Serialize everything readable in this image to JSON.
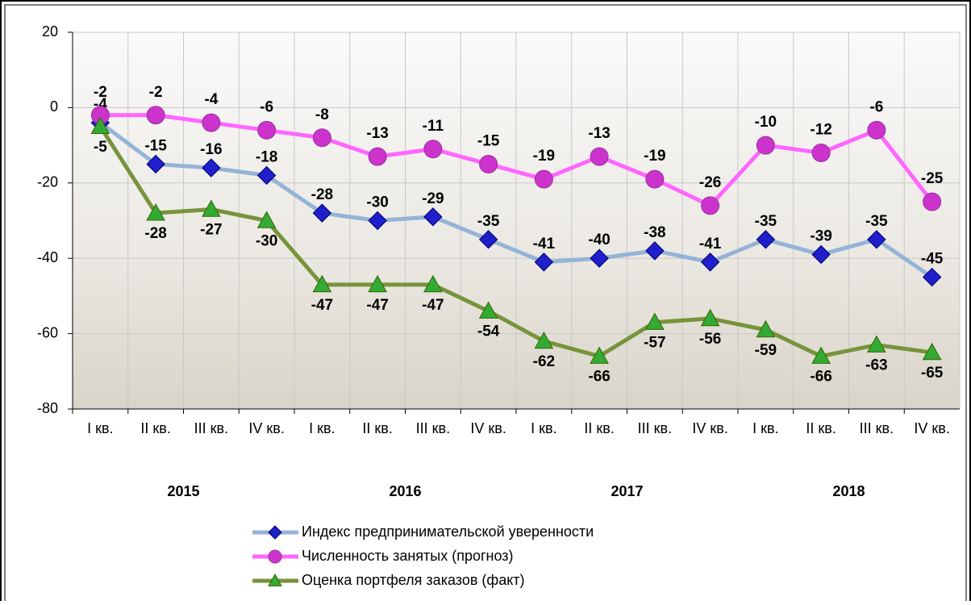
{
  "chart_data": {
    "type": "line",
    "categories": [
      "I кв.",
      "II кв.",
      "III кв.",
      "IV кв.",
      "I кв.",
      "II кв.",
      "III кв.",
      "IV кв.",
      "I кв.",
      "II кв.",
      "III кв.",
      "IV кв.",
      "I кв.",
      "II кв.",
      "III кв.",
      "IV кв."
    ],
    "groups": [
      "2015",
      "2016",
      "2017",
      "2018"
    ],
    "series": [
      {
        "name": "Индекс предпринимательской уверенности",
        "color": "#95b3d7",
        "marker": "diamond",
        "marker_color": "#1f1fcc",
        "values": [
          -4,
          -15,
          -16,
          -18,
          -28,
          -30,
          -29,
          -35,
          -41,
          -40,
          -38,
          -41,
          -35,
          -39,
          -35,
          -45
        ]
      },
      {
        "name": "Численность занятых (прогноз)",
        "color": "#ff66ff",
        "marker": "circle",
        "marker_color": "#cc33cc",
        "values": [
          -2,
          -2,
          -4,
          -6,
          -8,
          -13,
          -11,
          -15,
          -19,
          -13,
          -19,
          -26,
          -10,
          -12,
          -6,
          -25
        ]
      },
      {
        "name": "Оценка портфеля заказов (факт)",
        "color": "#77933c",
        "marker": "triangle",
        "marker_color": "#33aa33",
        "values": [
          -5,
          -28,
          -27,
          -30,
          -47,
          -47,
          -47,
          -54,
          -62,
          -66,
          -57,
          -56,
          -59,
          -66,
          -63,
          -65
        ]
      }
    ],
    "ylim": [
      -80,
      20
    ],
    "yticks": [
      -80,
      -60,
      -40,
      -20,
      0,
      20
    ],
    "grid": true
  }
}
